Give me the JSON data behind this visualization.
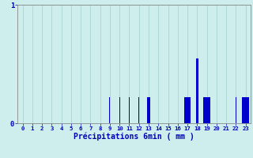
{
  "xlabel": "Précipitations 6min ( mm )",
  "background_color": "#ceeeed",
  "bar_color": "#0000cc",
  "grid_color": "#aad4d0",
  "axis_color": "#888888",
  "text_color": "#0000bb",
  "xlim": [
    -0.5,
    23.5
  ],
  "ylim": [
    0,
    1.0
  ],
  "yticks": [
    0,
    1
  ],
  "xticks": [
    0,
    1,
    2,
    3,
    4,
    5,
    6,
    7,
    8,
    9,
    10,
    11,
    12,
    13,
    14,
    15,
    16,
    17,
    18,
    19,
    20,
    21,
    22,
    23
  ],
  "values": [
    0,
    0,
    0,
    0,
    0,
    0,
    0,
    0,
    0,
    0.22,
    0.22,
    0.22,
    0.22,
    0.22,
    0,
    0,
    0,
    0.22,
    0.55,
    0.22,
    0,
    0,
    0.22,
    0.22
  ],
  "bar_widths": [
    0.5,
    0.5,
    0.5,
    0.5,
    0.5,
    0.5,
    0.5,
    0.5,
    0.5,
    0.08,
    0.08,
    0.08,
    0.08,
    0.25,
    0.5,
    0.5,
    0.5,
    0.7,
    0.25,
    0.7,
    0.5,
    0.5,
    0.12,
    0.7
  ]
}
